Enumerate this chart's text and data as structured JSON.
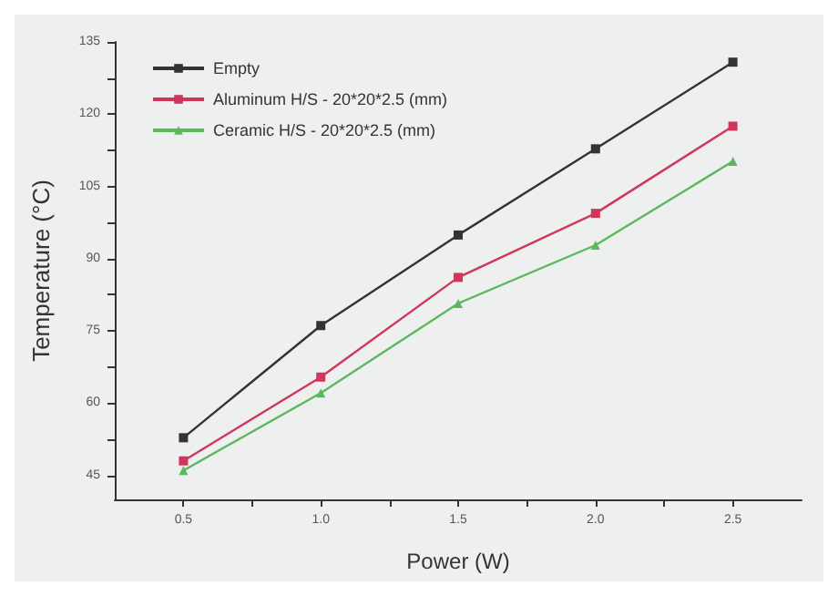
{
  "chart_data": {
    "type": "line",
    "xlabel": "Power (W)",
    "ylabel": "Temperature (°C)",
    "x": [
      0.5,
      1.0,
      1.5,
      2.0,
      2.5
    ],
    "series": [
      {
        "name": "Empty",
        "color": "#333333",
        "marker": "square",
        "values": [
          52.8,
          76.1,
          94.9,
          112.8,
          130.8
        ]
      },
      {
        "name": "Aluminum H/S - 20*20*2.5 (mm)",
        "color": "#d0365a",
        "marker": "square",
        "values": [
          48.0,
          65.4,
          86.1,
          99.4,
          117.5
        ]
      },
      {
        "name": "Ceramic H/S - 20*20*2.5 (mm)",
        "color": "#5cb85c",
        "marker": "triangle",
        "values": [
          46.0,
          62.1,
          80.7,
          92.8,
          110.2
        ]
      }
    ],
    "xlim": [
      0.25,
      2.75
    ],
    "xticks": [
      {
        "value": 0.5,
        "label": "0.5"
      },
      {
        "value": 0.75,
        "label": null
      },
      {
        "value": 1.0,
        "label": "1.0"
      },
      {
        "value": 1.25,
        "label": null
      },
      {
        "value": 1.5,
        "label": "1.5"
      },
      {
        "value": 1.75,
        "label": null
      },
      {
        "value": 2.0,
        "label": "2.0"
      },
      {
        "value": 2.25,
        "label": null
      },
      {
        "value": 2.5,
        "label": "2.5"
      }
    ],
    "ylim": [
      40,
      135
    ],
    "yticks": [
      45,
      {
        "value": 52.5,
        "label": null
      },
      60,
      {
        "value": 67.5,
        "label": null
      },
      75,
      {
        "value": 82.5,
        "label": null
      },
      90,
      {
        "value": 97.5,
        "label": null
      },
      105,
      {
        "value": 112.5,
        "label": null
      },
      120,
      {
        "value": 127.5,
        "label": null
      },
      135
    ],
    "grid": false,
    "legend": "top left",
    "line_style": "solid"
  }
}
